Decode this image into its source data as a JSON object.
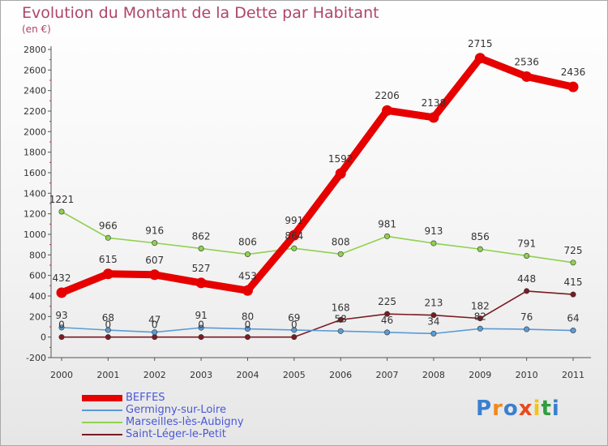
{
  "header": {
    "title": "Evolution du Montant de la Dette par Habitant",
    "unit": "(en €)"
  },
  "logo": {
    "text": "Proxiti"
  },
  "chart_data": {
    "type": "line",
    "title": "Evolution du Montant de la Dette par Habitant",
    "ylabel": "(en €)",
    "x": [
      "2000",
      "2001",
      "2002",
      "2003",
      "2004",
      "2005",
      "2006",
      "2007",
      "2008",
      "2009",
      "2010",
      "2011"
    ],
    "ylim": [
      -200,
      2800
    ],
    "yticks": [
      -200,
      0,
      200,
      400,
      600,
      800,
      1000,
      1200,
      1400,
      1600,
      1800,
      2000,
      2200,
      2400,
      2600,
      2800
    ],
    "grid": false,
    "legend_position": "bottom-left",
    "series": [
      {
        "name": "BEFFES",
        "color": "#e60000",
        "values": [
          432,
          615,
          607,
          527,
          453,
          991,
          1592,
          2206,
          2138,
          2715,
          2536,
          2436
        ],
        "labels": [
          "432",
          "615",
          "607",
          "527",
          "453",
          "991",
          "1592",
          "2206",
          "2138",
          "2715",
          "2536",
          "2436"
        ]
      },
      {
        "name": "Germigny-sur-Loire",
        "color": "#5b9bd5",
        "values": [
          93,
          68,
          47,
          91,
          80,
          69,
          58,
          46,
          34,
          82,
          76,
          64
        ],
        "labels": [
          "93",
          "68",
          "47",
          "91",
          "80",
          "69",
          "58",
          "46",
          "34",
          "82",
          "76",
          "64"
        ]
      },
      {
        "name": "Marseilles-lès-Aubigny",
        "color": "#8fd14f",
        "values": [
          1221,
          966,
          916,
          862,
          806,
          864,
          808,
          981,
          913,
          856,
          791,
          725
        ],
        "labels": [
          "1221",
          "966",
          "916",
          "862",
          "806",
          "864",
          "808",
          "981",
          "913",
          "856",
          "791",
          "725"
        ]
      },
      {
        "name": "Saint-Léger-le-Petit",
        "color": "#7b1a22",
        "values": [
          0,
          0,
          0,
          0,
          0,
          0,
          168,
          225,
          213,
          182,
          448,
          415
        ],
        "labels": [
          "0",
          "0",
          "0",
          "0",
          "0",
          "0",
          "168",
          "225",
          "213",
          "182",
          "448",
          "415"
        ]
      }
    ]
  }
}
